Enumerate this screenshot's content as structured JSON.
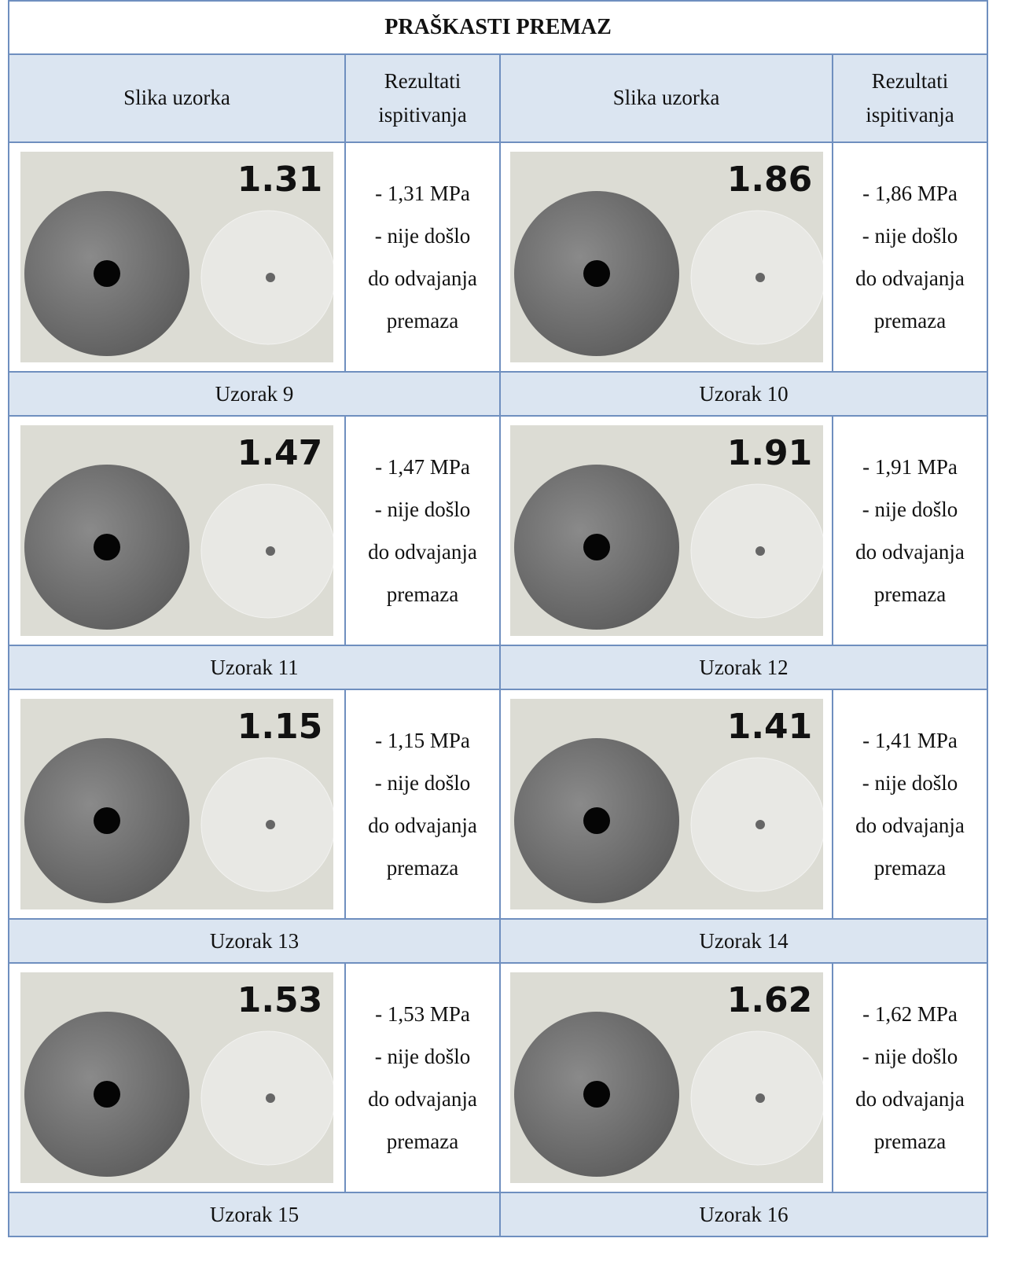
{
  "title": "PRAŠKASTI PREMAZ",
  "header": [
    "Slika uzorka",
    "Rezultati ispitivanja",
    "Slika uzorka",
    "Rezultati ispitivanja"
  ],
  "rows": [
    {
      "samples": [
        {
          "photo_label": "1.31",
          "result": [
            "- 1,31 MPa",
            "- nije došlo",
            "do odvajanja",
            "premaza"
          ],
          "caption": "Uzorak 9"
        },
        {
          "photo_label": "1.86",
          "result": [
            "- 1,86 MPa",
            "- nije došlo",
            "do odvajanja",
            "premaza"
          ],
          "caption": "Uzorak 10"
        }
      ]
    },
    {
      "samples": [
        {
          "photo_label": "1.47",
          "result": [
            "- 1,47 MPa",
            "- nije došlo",
            "do odvajanja",
            "premaza"
          ],
          "caption": "Uzorak 11"
        },
        {
          "photo_label": "1.91",
          "result": [
            "- 1,91 MPa",
            "- nije došlo",
            "do odvajanja",
            "premaza"
          ],
          "caption": "Uzorak 12"
        }
      ]
    },
    {
      "samples": [
        {
          "photo_label": "1.15",
          "result": [
            "- 1,15 MPa",
            "- nije došlo",
            "do odvajanja",
            "premaza"
          ],
          "caption": "Uzorak 13"
        },
        {
          "photo_label": "1.41",
          "result": [
            "- 1,41 MPa",
            "- nije došlo",
            "do odvajanja",
            "premaza"
          ],
          "caption": "Uzorak 14"
        }
      ]
    },
    {
      "samples": [
        {
          "photo_label": "1.53",
          "result": [
            "- 1,53 MPa",
            "- nije došlo",
            "do odvajanja",
            "premaza"
          ],
          "caption": "Uzorak 15"
        },
        {
          "photo_label": "1.62",
          "result": [
            "- 1,62 MPa",
            "- nije došlo",
            "do odvajanja",
            "premaza"
          ],
          "caption": "Uzorak 16"
        }
      ]
    }
  ]
}
